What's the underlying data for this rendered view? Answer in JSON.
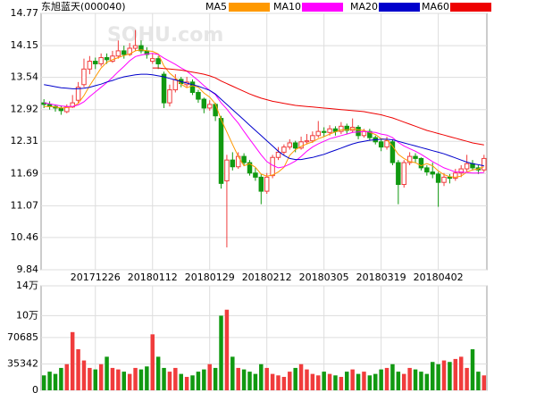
{
  "chart_data": {
    "type": "candlestick",
    "title": "东旭蓝天(000040)",
    "watermark": "SOHU.com",
    "categories": [
      null,
      null,
      null,
      null,
      null,
      null,
      null,
      null,
      null,
      "20171226",
      null,
      null,
      null,
      null,
      null,
      null,
      null,
      null,
      null,
      "20180112",
      null,
      null,
      null,
      null,
      null,
      null,
      null,
      null,
      null,
      "20180129",
      null,
      null,
      null,
      null,
      null,
      null,
      null,
      null,
      null,
      "20180212",
      null,
      null,
      null,
      null,
      null,
      null,
      null,
      null,
      null,
      "20180305",
      null,
      null,
      null,
      null,
      null,
      null,
      null,
      null,
      null,
      "20180319",
      null,
      null,
      null,
      null,
      null,
      null,
      null,
      null,
      null,
      "20180402",
      null,
      null,
      null,
      null,
      null,
      null,
      null,
      null
    ],
    "ohlc": [
      [
        13.05,
        13.12,
        12.95,
        13.02
      ],
      [
        13.02,
        13.08,
        12.92,
        12.98
      ],
      [
        12.98,
        13.02,
        12.88,
        12.95
      ],
      [
        12.95,
        13.0,
        12.82,
        12.9
      ],
      [
        12.88,
        13.02,
        12.85,
        12.97
      ],
      [
        12.97,
        13.2,
        12.95,
        13.05
      ],
      [
        13.1,
        13.45,
        13.05,
        13.35
      ],
      [
        13.4,
        13.9,
        13.35,
        13.7
      ],
      [
        13.7,
        13.95,
        13.6,
        13.85
      ],
      [
        13.85,
        13.92,
        13.7,
        13.8
      ],
      [
        13.8,
        14.0,
        13.75,
        13.92
      ],
      [
        13.92,
        14.0,
        13.8,
        13.88
      ],
      [
        13.85,
        14.05,
        13.82,
        13.95
      ],
      [
        13.95,
        14.25,
        13.9,
        14.05
      ],
      [
        14.05,
        14.15,
        13.9,
        13.98
      ],
      [
        13.98,
        14.2,
        13.95,
        14.1
      ],
      [
        14.1,
        14.45,
        14.05,
        14.15
      ],
      [
        14.15,
        14.25,
        14.0,
        14.05
      ],
      [
        14.05,
        14.12,
        13.9,
        13.98
      ],
      [
        13.85,
        14.0,
        13.8,
        13.9
      ],
      [
        13.9,
        13.95,
        13.7,
        13.8
      ],
      [
        13.6,
        13.65,
        12.95,
        13.05
      ],
      [
        13.05,
        13.4,
        12.98,
        13.3
      ],
      [
        13.3,
        13.6,
        13.25,
        13.5
      ],
      [
        13.5,
        13.55,
        13.35,
        13.42
      ],
      [
        13.4,
        13.55,
        13.35,
        13.45
      ],
      [
        13.45,
        13.5,
        13.2,
        13.25
      ],
      [
        13.25,
        13.3,
        13.05,
        13.12
      ],
      [
        13.12,
        13.15,
        12.85,
        12.95
      ],
      [
        12.95,
        13.1,
        12.9,
        13.02
      ],
      [
        13.02,
        13.05,
        12.7,
        12.8
      ],
      [
        12.75,
        12.8,
        11.4,
        11.5
      ],
      [
        11.55,
        12.05,
        10.27,
        11.95
      ],
      [
        11.95,
        12.1,
        11.75,
        11.82
      ],
      [
        11.82,
        12.1,
        11.78,
        12.02
      ],
      [
        12.02,
        12.08,
        11.85,
        11.9
      ],
      [
        11.9,
        11.95,
        11.65,
        11.7
      ],
      [
        11.7,
        11.8,
        11.55,
        11.62
      ],
      [
        11.62,
        11.68,
        11.1,
        11.35
      ],
      [
        11.35,
        11.7,
        11.3,
        11.62
      ],
      [
        11.65,
        12.05,
        11.6,
        12.0
      ],
      [
        12.0,
        12.2,
        11.95,
        12.1
      ],
      [
        12.1,
        12.25,
        12.05,
        12.2
      ],
      [
        12.2,
        12.35,
        12.15,
        12.28
      ],
      [
        12.28,
        12.32,
        12.1,
        12.18
      ],
      [
        12.18,
        12.4,
        12.15,
        12.3
      ],
      [
        12.3,
        12.45,
        12.25,
        12.32
      ],
      [
        12.32,
        12.5,
        12.28,
        12.42
      ],
      [
        12.42,
        12.7,
        12.38,
        12.5
      ],
      [
        12.5,
        12.58,
        12.4,
        12.48
      ],
      [
        12.48,
        12.62,
        12.42,
        12.55
      ],
      [
        12.55,
        12.6,
        12.42,
        12.5
      ],
      [
        12.5,
        12.68,
        12.45,
        12.6
      ],
      [
        12.6,
        12.65,
        12.45,
        12.52
      ],
      [
        12.52,
        12.75,
        12.48,
        12.58
      ],
      [
        12.58,
        12.62,
        12.35,
        12.42
      ],
      [
        12.42,
        12.55,
        12.38,
        12.5
      ],
      [
        12.5,
        12.55,
        12.32,
        12.38
      ],
      [
        12.38,
        12.42,
        12.25,
        12.3
      ],
      [
        12.3,
        12.35,
        12.12,
        12.2
      ],
      [
        12.2,
        12.4,
        12.15,
        12.32
      ],
      [
        12.3,
        12.35,
        11.85,
        11.9
      ],
      [
        11.9,
        11.95,
        11.1,
        11.48
      ],
      [
        11.48,
        11.95,
        11.42,
        11.9
      ],
      [
        11.9,
        12.1,
        11.85,
        12.02
      ],
      [
        12.02,
        12.08,
        11.9,
        11.98
      ],
      [
        11.98,
        12.0,
        11.75,
        11.8
      ],
      [
        11.8,
        11.85,
        11.65,
        11.72
      ],
      [
        11.72,
        11.9,
        11.6,
        11.68
      ],
      [
        11.68,
        11.72,
        11.05,
        11.52
      ],
      [
        11.52,
        11.7,
        11.45,
        11.62
      ],
      [
        11.62,
        11.68,
        11.5,
        11.6
      ],
      [
        11.6,
        11.78,
        11.55,
        11.7
      ],
      [
        11.7,
        11.85,
        11.62,
        11.78
      ],
      [
        11.78,
        12.05,
        11.72,
        11.88
      ],
      [
        11.88,
        11.95,
        11.75,
        11.8
      ],
      [
        11.8,
        11.85,
        11.68,
        11.76
      ],
      [
        11.76,
        12.05,
        11.72,
        11.98
      ]
    ],
    "volume": [
      20000,
      25000,
      22000,
      30000,
      35000,
      78000,
      55000,
      40000,
      30000,
      28000,
      35000,
      45000,
      30000,
      28000,
      25000,
      22000,
      30000,
      28000,
      32000,
      75000,
      45000,
      30000,
      25000,
      30000,
      22000,
      18000,
      20000,
      25000,
      28000,
      35000,
      30000,
      100000,
      108000,
      45000,
      30000,
      28000,
      25000,
      22000,
      35000,
      30000,
      22000,
      20000,
      18000,
      25000,
      30000,
      35000,
      28000,
      22000,
      20000,
      25000,
      22000,
      20000,
      18000,
      25000,
      28000,
      22000,
      25000,
      20000,
      22000,
      28000,
      30000,
      35000,
      25000,
      22000,
      30000,
      28000,
      25000,
      22000,
      38000,
      35000,
      40000,
      38000,
      42000,
      45000,
      30000,
      55000,
      25000,
      20000
    ],
    "series": [
      {
        "name": "MA5",
        "color": "#ff9900",
        "values": [
          12.98,
          12.98,
          12.97,
          12.95,
          12.96,
          12.97,
          13.04,
          13.19,
          13.38,
          13.55,
          13.72,
          13.83,
          13.88,
          13.92,
          13.96,
          13.99,
          14.05,
          14.07,
          14.05,
          14.04,
          13.99,
          13.76,
          13.62,
          13.53,
          13.41,
          13.34,
          13.38,
          13.35,
          13.24,
          13.16,
          13.03,
          12.73,
          12.49,
          12.25,
          12.02,
          11.84,
          11.88,
          11.81,
          11.68,
          11.64,
          11.66,
          11.72,
          11.81,
          12.04,
          12.15,
          12.21,
          12.26,
          12.3,
          12.36,
          12.4,
          12.45,
          12.49,
          12.53,
          12.53,
          12.55,
          12.53,
          12.52,
          12.48,
          12.44,
          12.36,
          12.34,
          12.22,
          12.06,
          11.98,
          11.92,
          11.9,
          11.84,
          11.88,
          11.84,
          11.74,
          11.67,
          11.63,
          11.62,
          11.64,
          11.72,
          11.76,
          11.78,
          11.82
        ]
      },
      {
        "name": "MA10",
        "color": "#ff00ff",
        "values": [
          13.05,
          13.03,
          13.01,
          12.99,
          12.98,
          12.98,
          13.01,
          13.07,
          13.17,
          13.26,
          13.35,
          13.44,
          13.54,
          13.65,
          13.75,
          13.86,
          13.94,
          13.97,
          13.99,
          14.0,
          13.98,
          13.91,
          13.85,
          13.79,
          13.72,
          13.66,
          13.57,
          13.48,
          13.38,
          13.29,
          13.21,
          13.05,
          12.93,
          12.79,
          12.66,
          12.5,
          12.35,
          12.2,
          12.05,
          11.92,
          11.85,
          11.8,
          11.82,
          11.87,
          11.93,
          12.02,
          12.12,
          12.2,
          12.26,
          12.31,
          12.36,
          12.39,
          12.42,
          12.45,
          12.48,
          12.49,
          12.5,
          12.49,
          12.48,
          12.45,
          12.43,
          12.38,
          12.29,
          12.22,
          12.17,
          12.12,
          12.06,
          11.99,
          11.92,
          11.86,
          11.8,
          11.76,
          11.72,
          11.72,
          11.71,
          11.7,
          11.7,
          11.71
        ]
      },
      {
        "name": "MA20",
        "color": "#0000cc",
        "values": [
          13.4,
          13.38,
          13.36,
          13.34,
          13.33,
          13.32,
          13.32,
          13.33,
          13.35,
          13.38,
          13.41,
          13.45,
          13.48,
          13.52,
          13.55,
          13.57,
          13.59,
          13.6,
          13.6,
          13.59,
          13.57,
          13.55,
          13.52,
          13.49,
          13.46,
          13.43,
          13.4,
          13.37,
          13.33,
          13.29,
          13.22,
          13.12,
          13.02,
          12.92,
          12.82,
          12.72,
          12.62,
          12.52,
          12.42,
          12.32,
          12.22,
          12.12,
          12.04,
          11.98,
          11.96,
          11.96,
          11.98,
          12.0,
          12.03,
          12.06,
          12.1,
          12.14,
          12.18,
          12.22,
          12.26,
          12.29,
          12.31,
          12.33,
          12.34,
          12.35,
          12.35,
          12.34,
          12.31,
          12.28,
          12.25,
          12.22,
          12.19,
          12.16,
          12.13,
          12.1,
          12.07,
          12.03,
          11.99,
          11.95,
          11.91,
          11.88,
          11.86,
          11.84
        ]
      },
      {
        "name": "MA60",
        "color": "#ee0000",
        "values": [
          null,
          null,
          null,
          null,
          null,
          null,
          null,
          null,
          null,
          null,
          null,
          null,
          null,
          null,
          null,
          null,
          null,
          null,
          null,
          13.72,
          13.72,
          13.71,
          13.7,
          13.69,
          13.68,
          13.66,
          13.64,
          13.62,
          13.6,
          13.57,
          13.53,
          13.47,
          13.42,
          13.37,
          13.32,
          13.27,
          13.22,
          13.18,
          13.14,
          13.11,
          13.08,
          13.06,
          13.04,
          13.02,
          13.0,
          12.99,
          12.98,
          12.97,
          12.96,
          12.95,
          12.94,
          12.93,
          12.92,
          12.91,
          12.9,
          12.89,
          12.88,
          12.86,
          12.84,
          12.82,
          12.79,
          12.76,
          12.72,
          12.68,
          12.64,
          12.6,
          12.56,
          12.52,
          12.49,
          12.46,
          12.43,
          12.4,
          12.37,
          12.34,
          12.31,
          12.28,
          12.26,
          12.24
        ]
      }
    ],
    "up_color": "#f03c3c",
    "down_color": "#119911",
    "ylim": [
      9.84,
      14.77
    ],
    "yticks": [
      14.77,
      14.15,
      13.54,
      12.92,
      12.31,
      11.69,
      11.07,
      10.46,
      9.84
    ],
    "vlim": [
      0,
      140000
    ],
    "vticks": [
      {
        "value": 140000,
        "label": "14万"
      },
      {
        "value": 100000,
        "label": "10万"
      },
      70685,
      35342,
      0
    ],
    "grid": true
  }
}
